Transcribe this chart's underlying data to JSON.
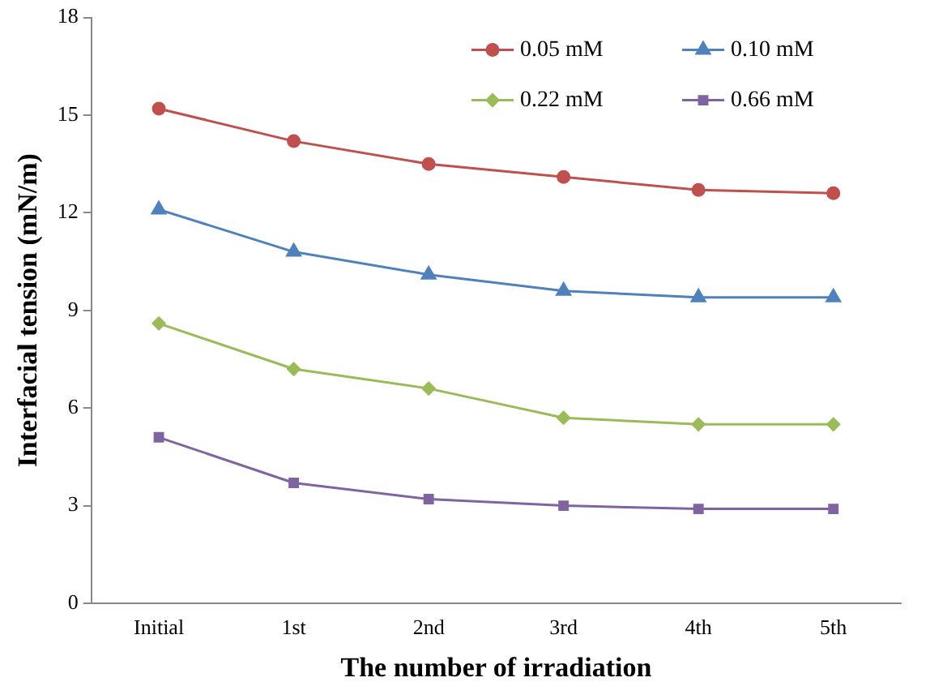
{
  "chart_data": {
    "type": "line",
    "xlabel": "The number of irradiation",
    "ylabel": "Interfacial tension (mN/m)",
    "categories": [
      "Initial",
      "1st",
      "2nd",
      "3rd",
      "4th",
      "5th"
    ],
    "ylim": [
      0,
      18
    ],
    "yticks": [
      0,
      3,
      6,
      9,
      12,
      15,
      18
    ],
    "grid": false,
    "legend": "top right",
    "line_style": "solid",
    "series": [
      {
        "name": "0.05 mM",
        "color": "#c0504d",
        "marker": "circle",
        "values": [
          15.2,
          14.2,
          13.5,
          13.1,
          12.7,
          12.6
        ]
      },
      {
        "name": "0.10 mM",
        "color": "#4f81bd",
        "marker": "triangle",
        "values": [
          12.1,
          10.8,
          10.1,
          9.6,
          9.4,
          9.4
        ]
      },
      {
        "name": "0.22 mM",
        "color": "#9bbb59",
        "marker": "diamond",
        "values": [
          8.6,
          7.2,
          6.6,
          5.7,
          5.5,
          5.5
        ]
      },
      {
        "name": "0.66 mM",
        "color": "#8064a2",
        "marker": "square",
        "values": [
          5.1,
          3.7,
          3.2,
          3.0,
          2.9,
          2.9
        ]
      }
    ]
  }
}
